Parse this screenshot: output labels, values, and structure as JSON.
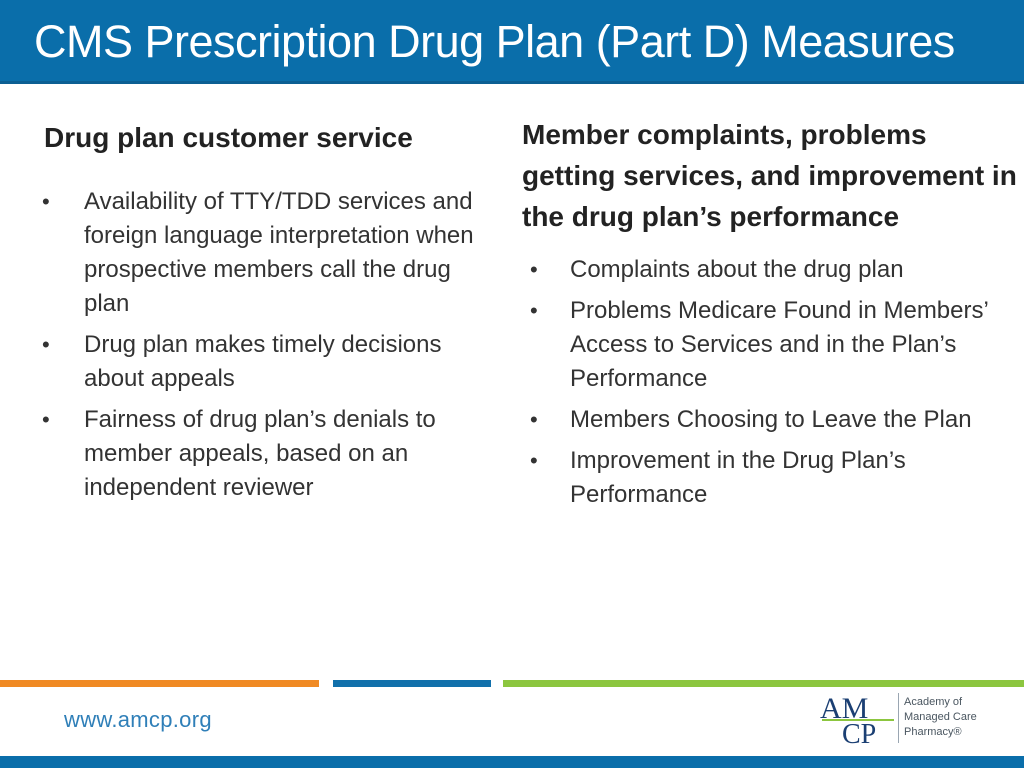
{
  "slide": {
    "title": "CMS Prescription Drug Plan (Part D) Measures"
  },
  "left_column": {
    "heading": "Drug plan customer service",
    "bullets": [
      "Availability of TTY/TDD services and foreign language interpretation when prospective members call the drug plan",
      "Drug plan makes timely decisions about appeals",
      "Fairness of drug plan’s denials to member appeals, based on an independent reviewer"
    ]
  },
  "right_column": {
    "heading": "Member complaints, problems getting services, and improvement in the drug plan’s performance",
    "bullets": [
      "Complaints about the drug plan",
      "Problems Medicare Found in Members’ Access to Services and in the Plan’s Performance",
      "Members Choosing to Leave the Plan",
      "Improvement in the Drug Plan’s Performance"
    ]
  },
  "footer": {
    "url": "www.amcp.org",
    "logo": {
      "mark_top": "AM",
      "mark_bottom": "CP",
      "line1": "Academy of",
      "line2": "Managed Care",
      "line3": "Pharmacy®"
    }
  },
  "colors": {
    "title_bar": "#0a6eaa",
    "stripe_orange": "#f08a24",
    "stripe_blue": "#1170ab",
    "stripe_green": "#8cc63f",
    "logo_navy": "#1b3f73"
  }
}
